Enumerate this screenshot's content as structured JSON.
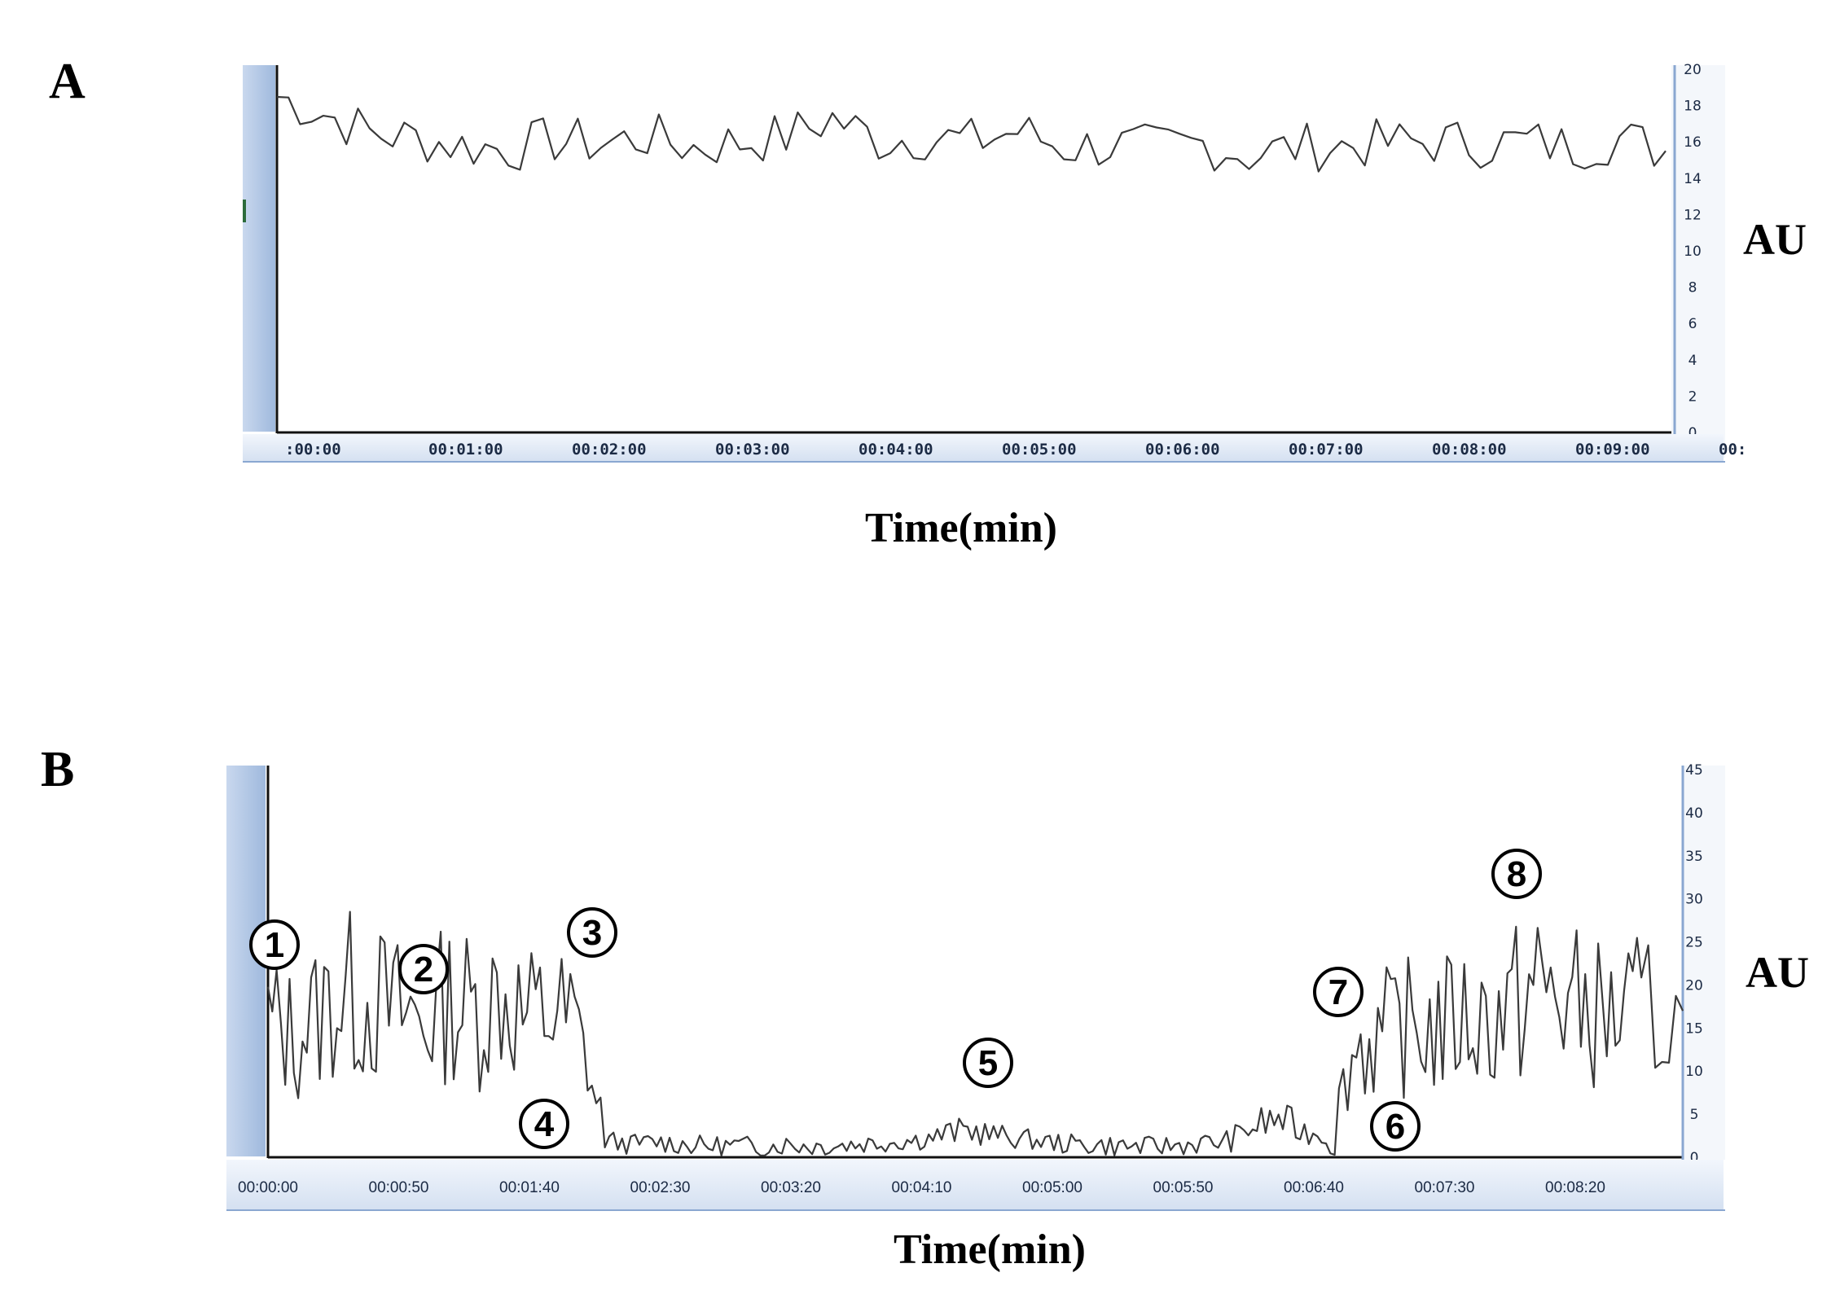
{
  "chart_data": [
    {
      "panel": "A",
      "type": "line",
      "xlabel": "Time(min)",
      "ylabel": "AU",
      "ylim": [
        0,
        20
      ],
      "yticks": [
        "0",
        "2",
        "4",
        "6",
        "8",
        "10",
        "12",
        "14",
        "16",
        "18",
        "20"
      ],
      "x_tick_labels": [
        ":00:00",
        "00:01:00",
        "00:02:00",
        "00:03:00",
        "00:04:00",
        "00:05:00",
        "00:06:00",
        "00:07:00",
        "00:08:00",
        "00:09:00",
        "00:"
      ],
      "xlim_seconds": [
        0,
        600
      ],
      "series": [
        {
          "x_seconds": [
            0,
            20,
            40,
            60,
            80,
            100,
            120,
            140,
            160,
            180,
            200,
            220,
            240,
            260,
            280,
            300,
            320,
            340,
            360,
            380,
            400,
            420,
            440,
            460,
            480,
            500,
            520,
            540,
            560,
            580,
            600
          ],
          "values": [
            18.5,
            17.6,
            16.5,
            16.2,
            15.8,
            15.6,
            16.1,
            15.9,
            16.3,
            15.7,
            16.0,
            16.3,
            17.3,
            16.1,
            16.3,
            16.0,
            16.6,
            15.7,
            15.8,
            15.6,
            15.9,
            15.3,
            15.7,
            15.8,
            15.9,
            16.0,
            15.9,
            16.0,
            15.7,
            16.2,
            15.5
          ]
        }
      ],
      "color": "#3a3a3a",
      "grid": false
    },
    {
      "panel": "B",
      "type": "line",
      "xlabel": "Time(min)",
      "ylabel": "AU",
      "ylim": [
        0,
        45
      ],
      "yticks": [
        "0",
        "5",
        "10",
        "15",
        "20",
        "25",
        "30",
        "35",
        "40",
        "45"
      ],
      "x_tick_labels": [
        "00:00:00",
        "00:00:50",
        "00:01:40",
        "00:02:30",
        "00:03:20",
        "00:04:10",
        "00:05:00",
        "00:05:50",
        "00:06:40",
        "00:07:30",
        "00:08:20"
      ],
      "xlim_seconds": [
        0,
        546
      ],
      "series": [
        {
          "x_seconds": [
            0,
            10,
            20,
            30,
            40,
            50,
            60,
            70,
            80,
            90,
            100,
            110,
            120,
            130,
            140,
            150,
            160,
            170,
            180,
            190,
            200,
            210,
            220,
            230,
            240,
            250,
            260,
            270,
            280,
            290,
            300,
            310,
            320,
            330,
            340,
            350,
            360,
            370,
            380,
            390,
            400,
            410,
            420,
            430,
            440,
            450,
            460,
            470,
            480,
            490,
            500,
            510,
            520,
            530,
            546
          ],
          "values": [
            16,
            14,
            17,
            19,
            18,
            17,
            16,
            18,
            17,
            19,
            16,
            17,
            15,
            2.0,
            1.5,
            1.8,
            1.5,
            1.3,
            1.4,
            1.2,
            1.5,
            1.3,
            1.4,
            1.6,
            1.8,
            2.0,
            2.6,
            3.2,
            2.6,
            2.2,
            1.8,
            1.5,
            1.4,
            1.3,
            1.2,
            1.4,
            1.6,
            1.8,
            3.5,
            4.5,
            3.0,
            2.5,
            13,
            14,
            15,
            15,
            16,
            16,
            17,
            20,
            18,
            17,
            16,
            17,
            17
          ]
        }
      ],
      "color": "#3a3a3a",
      "grid": false,
      "annotations": [
        "1",
        "2",
        "3",
        "4",
        "5",
        "6",
        "7",
        "8"
      ]
    }
  ]
}
